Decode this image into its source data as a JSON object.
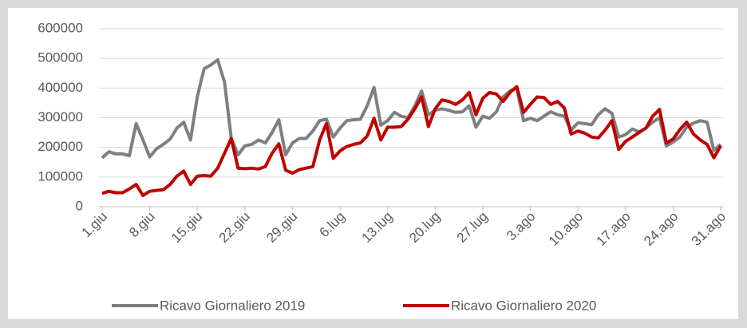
{
  "chart_data": {
    "type": "line",
    "categories": [
      "1.giu",
      null,
      null,
      null,
      null,
      null,
      null,
      "8.giu",
      null,
      null,
      null,
      null,
      null,
      null,
      "15.giu",
      null,
      null,
      null,
      null,
      null,
      null,
      "22.giu",
      null,
      null,
      null,
      null,
      null,
      null,
      "29.giu",
      null,
      null,
      null,
      null,
      null,
      null,
      "6.lug",
      null,
      null,
      null,
      null,
      null,
      null,
      "13.lug",
      null,
      null,
      null,
      null,
      null,
      null,
      "20.lug",
      null,
      null,
      null,
      null,
      null,
      null,
      "27.lug",
      null,
      null,
      null,
      null,
      null,
      null,
      "3.ago",
      null,
      null,
      null,
      null,
      null,
      null,
      "10.ago",
      null,
      null,
      null,
      null,
      null,
      null,
      "17.ago",
      null,
      null,
      null,
      null,
      null,
      null,
      "24.ago",
      null,
      null,
      null,
      null,
      null,
      null,
      "31.ago"
    ],
    "series": [
      {
        "name": "Ricavo Giornaliero 2019",
        "color": "#7f7f7f",
        "values": [
          165000,
          185000,
          178000,
          178000,
          172000,
          280000,
          225000,
          168000,
          195000,
          210000,
          228000,
          265000,
          285000,
          225000,
          370000,
          465000,
          478000,
          495000,
          420000,
          230000,
          175000,
          205000,
          210000,
          225000,
          215000,
          250000,
          293000,
          175000,
          215000,
          230000,
          230000,
          255000,
          290000,
          295000,
          235000,
          265000,
          290000,
          293000,
          295000,
          340000,
          402000,
          275000,
          290000,
          318000,
          305000,
          300000,
          340000,
          390000,
          310000,
          325000,
          330000,
          325000,
          318000,
          320000,
          340000,
          268000,
          305000,
          298000,
          320000,
          370000,
          390000,
          400000,
          290000,
          298000,
          290000,
          305000,
          320000,
          310000,
          305000,
          258000,
          283000,
          280000,
          276000,
          310000,
          330000,
          315000,
          235000,
          243000,
          262000,
          252000,
          265000,
          285000,
          300000,
          205000,
          218000,
          235000,
          268000,
          282000,
          290000,
          285000,
          190000,
          210000
        ]
      },
      {
        "name": "Ricavo Giornaliero 2020",
        "color": "#c00000",
        "values": [
          45000,
          52000,
          47000,
          47000,
          60000,
          75000,
          38000,
          52000,
          55000,
          57000,
          75000,
          103000,
          120000,
          75000,
          103000,
          105000,
          103000,
          130000,
          180000,
          230000,
          130000,
          128000,
          130000,
          127000,
          135000,
          180000,
          212000,
          123000,
          113000,
          125000,
          130000,
          135000,
          225000,
          280000,
          163000,
          188000,
          203000,
          210000,
          215000,
          238000,
          298000,
          225000,
          268000,
          268000,
          270000,
          295000,
          330000,
          370000,
          270000,
          330000,
          360000,
          355000,
          345000,
          360000,
          385000,
          310000,
          365000,
          385000,
          380000,
          355000,
          385000,
          405000,
          318000,
          345000,
          370000,
          368000,
          345000,
          355000,
          333000,
          245000,
          255000,
          248000,
          235000,
          232000,
          258000,
          290000,
          193000,
          220000,
          235000,
          250000,
          265000,
          305000,
          328000,
          215000,
          228000,
          260000,
          285000,
          245000,
          225000,
          210000,
          165000,
          205000
        ]
      }
    ],
    "ylim": [
      0,
      600000
    ],
    "yticks": [
      0,
      100000,
      200000,
      300000,
      400000,
      500000,
      600000
    ],
    "grid": true,
    "legend": "bottom"
  }
}
